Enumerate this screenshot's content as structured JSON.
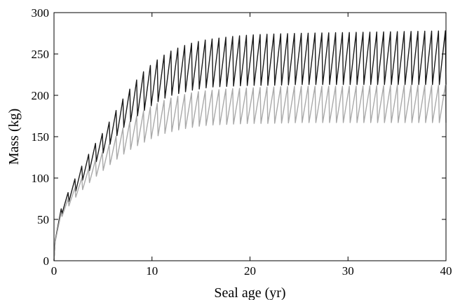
{
  "chart_data": {
    "type": "line",
    "title": "",
    "xlabel": "Seal age (yr)",
    "ylabel": "Mass (kg)",
    "xlim": [
      0,
      40
    ],
    "ylim": [
      0,
      300
    ],
    "xticks": [
      0,
      10,
      20,
      30,
      40
    ],
    "yticks": [
      0,
      50,
      100,
      150,
      200,
      250,
      300
    ],
    "xtick_labels": [
      "0",
      "10",
      "20",
      "30",
      "40"
    ],
    "ytick_labels": [
      "0",
      "50",
      "100",
      "150",
      "200",
      "250",
      "300"
    ],
    "grid": false,
    "legend": "none",
    "series": [
      {
        "color": "#1a1a1a",
        "cycle_period_yr": 0.7,
        "asymptotic_peak_mass": 278,
        "asymptotic_trough_mass": 213,
        "x": [
          0,
          0.2,
          1,
          2,
          3,
          4,
          5,
          6,
          7,
          8,
          9,
          10,
          11,
          12,
          13,
          14,
          15,
          16,
          18,
          20,
          22,
          25,
          30,
          35,
          40
        ],
        "peak": [
          0,
          44,
          72,
          96,
          118,
          138,
          155,
          175,
          195,
          212,
          227,
          238,
          247,
          254,
          259,
          263,
          266,
          268,
          271,
          273,
          274,
          275,
          276,
          277,
          278
        ],
        "trough": [
          0,
          40,
          62,
          80,
          99,
          115,
          130,
          145,
          160,
          170,
          180,
          188,
          195,
          200,
          203,
          206,
          208,
          210,
          211,
          212,
          212,
          213,
          213,
          213,
          213
        ]
      },
      {
        "color": "#a9a9a9",
        "cycle_period_yr": 0.7,
        "asymptotic_peak_mass": 212,
        "asymptotic_trough_mass": 167,
        "x": [
          0,
          0.2,
          1,
          2,
          3,
          4,
          5,
          6,
          7,
          8,
          9,
          10,
          11,
          12,
          13,
          14,
          15,
          16,
          18,
          20,
          22,
          25,
          30,
          35,
          40
        ],
        "peak": [
          0,
          42,
          66,
          86,
          103,
          119,
          132,
          146,
          160,
          171,
          180,
          187,
          193,
          197,
          200,
          203,
          205,
          206,
          208,
          209,
          210,
          211,
          211,
          212,
          212
        ],
        "trough": [
          0,
          38,
          58,
          74,
          87,
          99,
          109,
          119,
          128,
          136,
          142,
          148,
          153,
          156,
          159,
          161,
          163,
          164,
          165,
          166,
          166,
          167,
          167,
          167,
          167
        ]
      }
    ]
  }
}
